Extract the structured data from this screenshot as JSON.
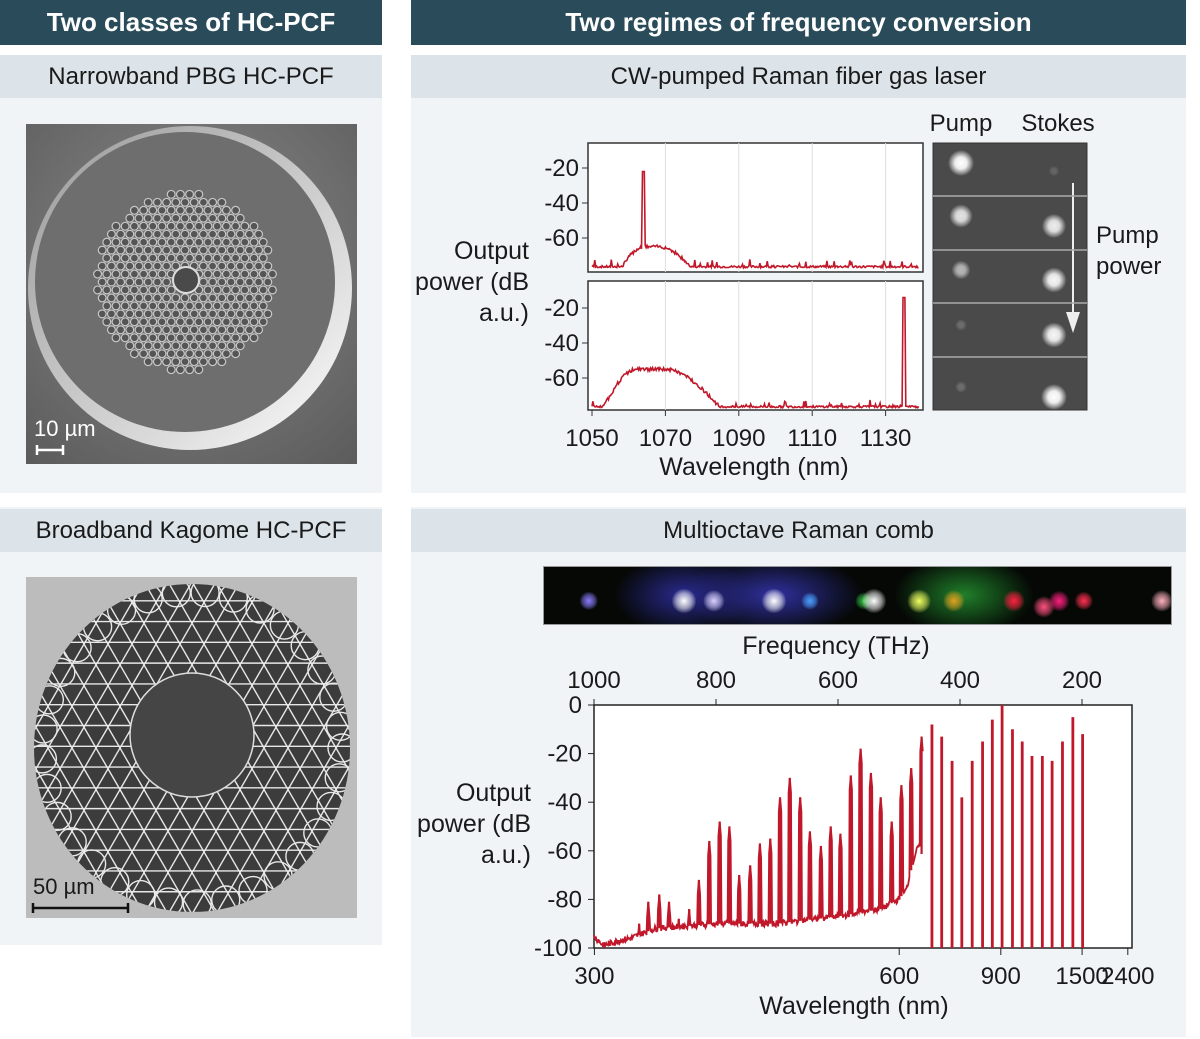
{
  "left_column": {
    "header": "Two classes of HC-PCF",
    "panels": [
      {
        "title": "Narrowband PBG HC-PCF",
        "scale_bar": "10 µm"
      },
      {
        "title": "Broadband Kagome HC-PCF",
        "scale_bar": "50 µm"
      }
    ]
  },
  "right_column": {
    "header": "Two regimes of frequency conversion",
    "cw_panel": {
      "title": "CW-pumped Raman fiber gas laser",
      "camera": {
        "column_labels": [
          "Pump",
          "Stokes"
        ],
        "arrow_label": [
          "Pump",
          "power"
        ],
        "pump_brightness": [
          1.0,
          0.85,
          0.6,
          0.2,
          0.2
        ],
        "stokes_brightness": [
          0.15,
          0.9,
          0.95,
          0.95,
          1.0
        ]
      }
    },
    "comb_panel": {
      "title": "Multioctave Raman comb",
      "spectrum_image_spots": [
        {
          "color": "#8a7cff",
          "intensity": 0.6
        },
        {
          "color": "#ffffff",
          "intensity": 1.0
        },
        {
          "color": "#d8d0ff",
          "intensity": 0.8
        },
        {
          "color": "#ffffff",
          "intensity": 1.0
        },
        {
          "color": "#4aa0ff",
          "intensity": 0.5
        },
        {
          "color": "#30c040",
          "intensity": 0.5
        },
        {
          "color": "#ffffff",
          "intensity": 1.0
        },
        {
          "color": "#f0ff60",
          "intensity": 0.9
        },
        {
          "color": "#e0a020",
          "intensity": 0.8
        },
        {
          "color": "#ff2040",
          "intensity": 0.8
        },
        {
          "color": "#ff5080",
          "intensity": 0.8
        },
        {
          "color": "#ff2080",
          "intensity": 0.7
        },
        {
          "color": "#ff3050",
          "intensity": 0.6
        },
        {
          "color": "#ffb0c0",
          "intensity": 0.8
        }
      ]
    }
  },
  "chart_data": [
    {
      "type": "line",
      "title": "",
      "xlabel": "Wavelength (nm)",
      "ylabel": "Output power (dB a.u.)",
      "xlim": [
        1049,
        1140
      ],
      "xticks": [
        1050,
        1070,
        1090,
        1110,
        1130
      ],
      "grid": "vertical",
      "color": "#c0182a",
      "panels": [
        {
          "ylim": [
            -79,
            -6
          ],
          "yticks": [
            -20,
            -40,
            -60
          ],
          "noise_floor": -77,
          "hump": {
            "start": 1058,
            "peak": 1066,
            "end": 1077,
            "peak_db": -65
          },
          "lines": [
            {
              "x": 1064,
              "y": -22
            }
          ]
        },
        {
          "ylim": [
            -79,
            -13
          ],
          "yticks": [
            -20,
            -40,
            -60
          ],
          "noise_floor": -77,
          "hump": {
            "start": 1053,
            "peak": 1065,
            "end": 1085,
            "peak_db": -55
          },
          "lines": [
            {
              "x": 1135,
              "y": -14
            }
          ]
        }
      ]
    },
    {
      "type": "line",
      "title": "",
      "xlabel": "Wavelength (nm)",
      "x2label": "Frequency (THz)",
      "ylabel": "Output power (dB a.u.)",
      "x2lim_thz": [
        1000,
        118
      ],
      "xticks_nm": [
        300,
        600,
        900,
        1500,
        2400
      ],
      "x2ticks_thz": [
        1000,
        800,
        600,
        400,
        200
      ],
      "ylim": [
        -100,
        0
      ],
      "yticks": [
        0,
        -20,
        -40,
        -60,
        -80,
        -100
      ],
      "grid": false,
      "color": "#c0182a",
      "noise_floor_thz_db": [
        [
          1000,
          -95
        ],
        [
          985,
          -99
        ],
        [
          960,
          -97
        ],
        [
          940,
          -96
        ],
        [
          900,
          -92
        ],
        [
          850,
          -91
        ],
        [
          800,
          -90
        ],
        [
          700,
          -90
        ],
        [
          600,
          -87
        ],
        [
          530,
          -84
        ],
        [
          500,
          -80
        ],
        [
          488,
          -76
        ],
        [
          480,
          -68
        ],
        [
          474,
          -62
        ],
        [
          468,
          -58
        ],
        [
          462,
          -62
        ],
        [
          460,
          -100
        ]
      ],
      "peaks_thz_db": [
        [
          926,
          -90
        ],
        [
          911,
          -81
        ],
        [
          893,
          -78
        ],
        [
          877,
          -81
        ],
        [
          861,
          -88
        ],
        [
          844,
          -84
        ],
        [
          828,
          -72
        ],
        [
          811,
          -56
        ],
        [
          794,
          -48
        ],
        [
          778,
          -50
        ],
        [
          762,
          -70
        ],
        [
          744,
          -66
        ],
        [
          728,
          -57
        ],
        [
          711,
          -55
        ],
        [
          695,
          -38
        ],
        [
          679,
          -30
        ],
        [
          662,
          -38
        ],
        [
          646,
          -52
        ],
        [
          628,
          -58
        ],
        [
          612,
          -50
        ],
        [
          596,
          -53
        ],
        [
          579,
          -29
        ],
        [
          563,
          -18
        ],
        [
          546,
          -28
        ],
        [
          530,
          -38
        ],
        [
          512,
          -48
        ],
        [
          496,
          -33
        ],
        [
          480,
          -26
        ],
        [
          463,
          -13
        ],
        [
          446,
          -8
        ],
        [
          430,
          -13
        ],
        [
          413,
          -23
        ],
        [
          397,
          -38
        ],
        [
          380,
          -23
        ],
        [
          363,
          -15
        ],
        [
          347,
          -6
        ],
        [
          331,
          0
        ],
        [
          314,
          -10
        ],
        [
          298,
          -15
        ],
        [
          282,
          -21
        ],
        [
          265,
          -21
        ],
        [
          249,
          -23
        ],
        [
          232,
          -15
        ],
        [
          215,
          -5
        ],
        [
          199,
          -12
        ]
      ]
    }
  ]
}
